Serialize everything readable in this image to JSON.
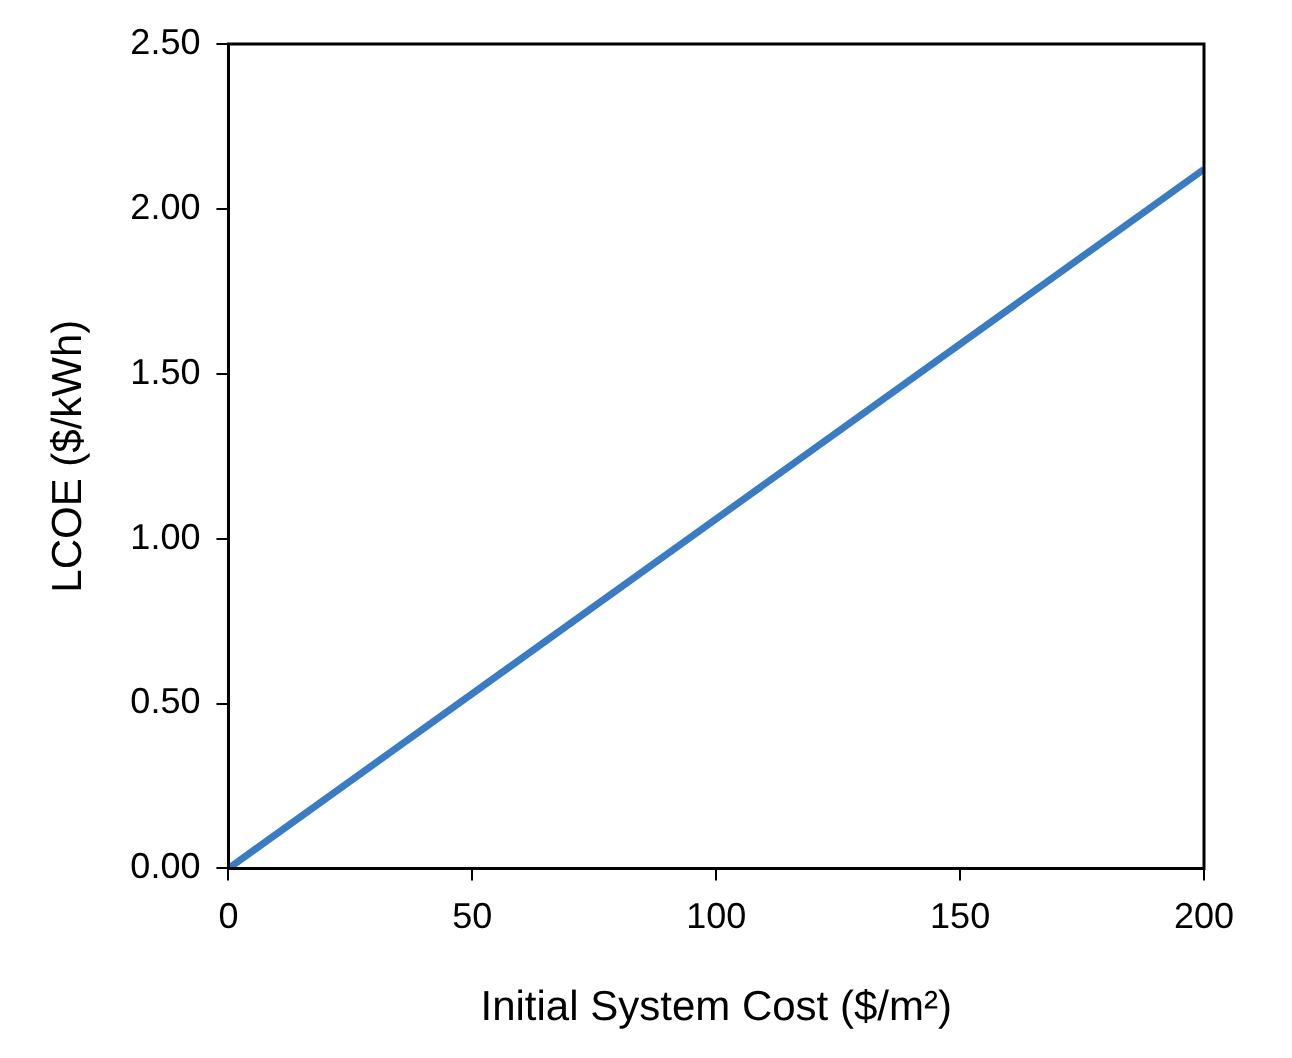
{
  "chart_data": {
    "type": "line",
    "xlabel": "Initial System Cost ($/m²)",
    "ylabel": "LCOE ($/kWh)",
    "x": [
      0,
      200
    ],
    "series": [
      {
        "color": "#3a7cc4",
        "values": [
          0,
          2.12
        ]
      }
    ],
    "xlim": [
      0,
      200
    ],
    "xticks": [
      0,
      50,
      100,
      150,
      200
    ],
    "ylim": [
      0,
      2.5
    ],
    "yticks": [
      {
        "value": 0,
        "label": "0.00"
      },
      {
        "value": 0.5,
        "label": "0.50"
      },
      {
        "value": 1,
        "label": "1.00"
      },
      {
        "value": 1.5,
        "label": "1.50"
      },
      {
        "value": 2,
        "label": "2.00"
      },
      {
        "value": 2.5,
        "label": "2.50"
      }
    ],
    "grid": false,
    "legend": false,
    "marker": "none",
    "line_style": "solid"
  }
}
